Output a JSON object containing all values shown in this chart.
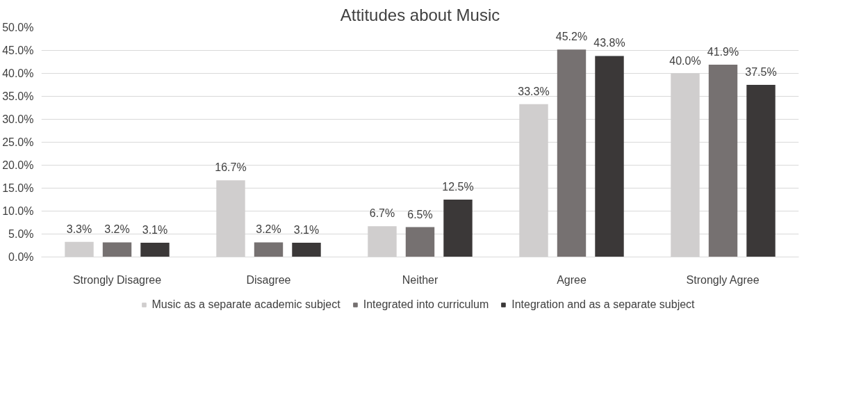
{
  "chart_data": {
    "type": "bar",
    "title": "Attitudes about Music",
    "categories": [
      "Strongly Disagree",
      "Disagree",
      "Neither",
      "Agree",
      "Strongly Agree"
    ],
    "series": [
      {
        "name": "Music as a separate academic subject",
        "color": "#d0cece",
        "values": [
          3.3,
          16.7,
          6.7,
          33.3,
          40.0
        ],
        "value_labels": [
          "3.3%",
          "16.7%",
          "6.7%",
          "33.3%",
          "40.0%"
        ]
      },
      {
        "name": "Integrated into curriculum",
        "color": "#767171",
        "values": [
          3.2,
          3.2,
          6.5,
          45.2,
          41.9
        ],
        "value_labels": [
          "3.2%",
          "3.2%",
          "6.5%",
          "45.2%",
          "41.9%"
        ]
      },
      {
        "name": "Integration and as a separate subject",
        "color": "#3b3838",
        "values": [
          3.1,
          3.1,
          12.5,
          43.8,
          37.5
        ],
        "value_labels": [
          "3.1%",
          "3.1%",
          "12.5%",
          "43.8%",
          "37.5%"
        ]
      }
    ],
    "ylim": [
      0,
      50
    ],
    "yticks": [
      {
        "value": 0,
        "label": "0.0%"
      },
      {
        "value": 5,
        "label": "5.0%"
      },
      {
        "value": 10,
        "label": "10.0%"
      },
      {
        "value": 15,
        "label": "15.0%"
      },
      {
        "value": 20,
        "label": "20.0%"
      },
      {
        "value": 25,
        "label": "25.0%"
      },
      {
        "value": 30,
        "label": "30.0%"
      },
      {
        "value": 35,
        "label": "35.0%"
      },
      {
        "value": 40,
        "label": "40.0%"
      },
      {
        "value": 45,
        "label": "45.0%"
      },
      {
        "value": 50,
        "label": "50.0%"
      }
    ],
    "grid": "y",
    "legend": "bottom"
  }
}
